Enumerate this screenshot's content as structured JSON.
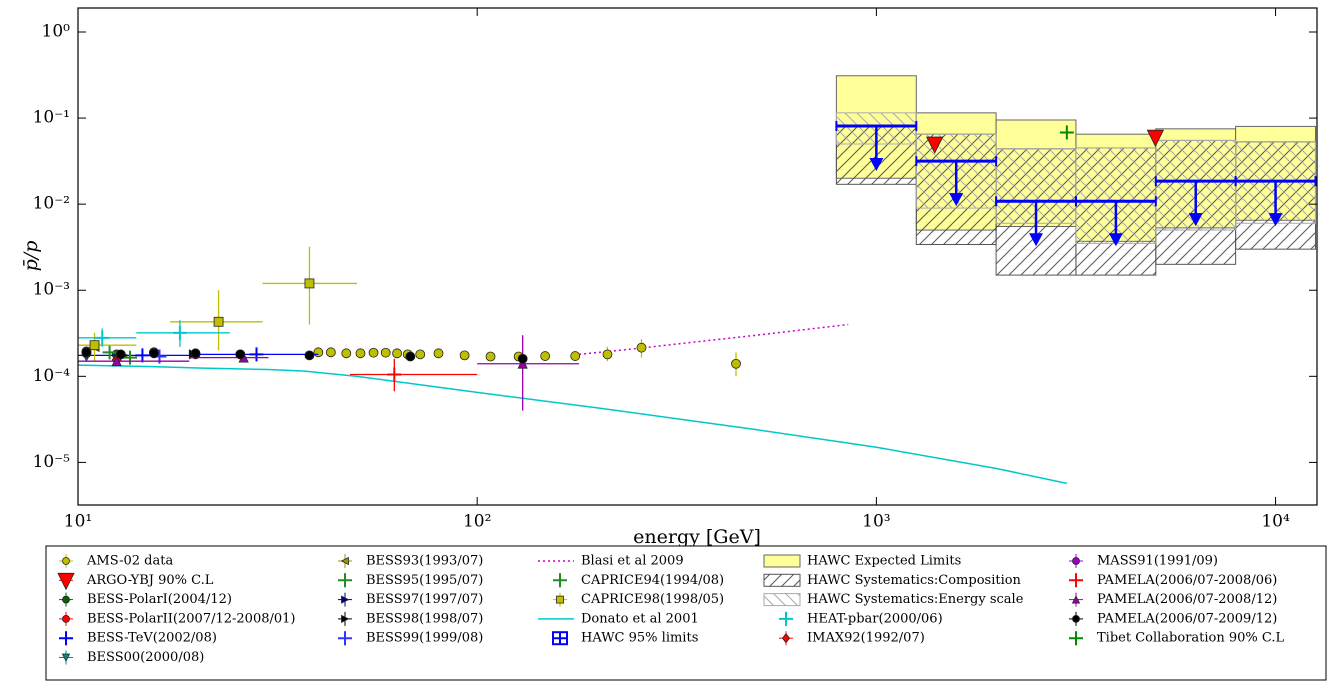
{
  "chart_data": {
    "type": "errorbar",
    "xlabel": "energy [GeV]",
    "ylabel": "p̄/p",
    "log_x": true,
    "log_y": true,
    "xlim": [
      10,
      12700
    ],
    "ylim": [
      3.2e-06,
      1.9
    ],
    "xticks": [
      {
        "value": 10,
        "label": "10¹"
      },
      {
        "value": 100,
        "label": "10²"
      },
      {
        "value": 1000,
        "label": "10³"
      },
      {
        "value": 10000,
        "label": "10⁴"
      }
    ],
    "yticks": [
      {
        "value": 1e-05,
        "label": "10⁻⁵"
      },
      {
        "value": 0.0001,
        "label": "10⁻⁴"
      },
      {
        "value": 0.001,
        "label": "10⁻³"
      },
      {
        "value": 0.01,
        "label": "10⁻²"
      },
      {
        "value": 0.1,
        "label": "10⁻¹"
      },
      {
        "value": 1,
        "label": "10⁰"
      }
    ],
    "bin_edges": [
      794,
      1259,
      1995,
      3162,
      5012,
      7943,
      12589
    ],
    "legend": "bottom",
    "series": [
      {
        "name": "AMS-02 data",
        "kind": "points",
        "marker": "o",
        "color": "#bfbf00",
        "x": [
          40,
          43,
          47,
          51,
          55,
          59,
          63,
          67,
          72,
          80,
          93,
          108,
          127,
          148,
          176,
          212,
          258,
          445
        ],
        "values": [
          0.00019,
          0.00019,
          0.000185,
          0.000185,
          0.000188,
          0.000188,
          0.000185,
          0.00018,
          0.00018,
          0.000185,
          0.000175,
          0.00017,
          0.00017,
          0.000172,
          0.000172,
          0.00018,
          0.000215,
          0.00014
        ],
        "y_low": [
          null,
          null,
          null,
          null,
          null,
          null,
          null,
          null,
          null,
          null,
          null,
          null,
          null,
          null,
          0.000155,
          0.00015,
          0.000165,
          0.0001
        ],
        "y_high": [
          null,
          null,
          null,
          null,
          null,
          null,
          null,
          null,
          null,
          null,
          null,
          null,
          null,
          null,
          0.00019,
          0.00022,
          0.00027,
          0.00019
        ]
      },
      {
        "name": "ARGO-YBJ 90% C.L",
        "kind": "points",
        "marker": "V",
        "color": "#ff0000",
        "x": [
          1400,
          5000
        ],
        "values": [
          0.05,
          0.06
        ]
      },
      {
        "name": "BESS-PolarI(2004/12)",
        "kind": "points",
        "marker": "o",
        "color": "#006400",
        "x": [
          12.5,
          15.5
        ],
        "values": [
          0.00018,
          0.00019
        ]
      },
      {
        "name": "BESS-PolarII(2007/12-2008/01)",
        "kind": "points",
        "marker": "o",
        "color": "#ff0000",
        "x": [
          10.5,
          15.5,
          19.7,
          25.5
        ],
        "values": [
          0.000195,
          0.00019,
          0.00018,
          0.00018
        ]
      },
      {
        "name": "BESS-TeV(2002/08)",
        "kind": "points",
        "marker": "+",
        "color": "#0000ff",
        "x": [
          14.5,
          28
        ],
        "values": [
          0.000175,
          0.00018
        ],
        "x_low": [
          10,
          20
        ],
        "x_high": [
          20,
          40
        ]
      },
      {
        "name": "BESS00(2000/08)",
        "kind": "points",
        "marker": "v",
        "color": "#008b8b",
        "x": [
          10.5
        ],
        "values": [
          0.00017
        ]
      },
      {
        "name": "BESS93(1993/07)",
        "kind": "points",
        "marker": "<",
        "color": "#999900",
        "x": [
          11
        ],
        "values": [
          0.00022
        ]
      },
      {
        "name": "BESS95(1995/07)",
        "kind": "points",
        "marker": "+",
        "color": "#228b22",
        "x": [
          12
        ],
        "values": [
          0.00019
        ]
      },
      {
        "name": "BESS97(1997/07)",
        "kind": "points",
        "marker": ">",
        "color": "#000080",
        "x": [
          13
        ],
        "values": [
          0.000175
        ]
      },
      {
        "name": "BESS98(1998/07)",
        "kind": "points",
        "marker": ">",
        "color": "#000000",
        "x": [
          19.5
        ],
        "values": [
          0.00018
        ]
      },
      {
        "name": "BESS99(1999/08)",
        "kind": "points",
        "marker": "+",
        "color": "#3333ff",
        "x": [
          16
        ],
        "values": [
          0.00017
        ]
      },
      {
        "name": "Blasi et al 2009",
        "kind": "line",
        "dash": "dotted",
        "color": "#cc00cc",
        "x": [
          180,
          250,
          350,
          500,
          700,
          850
        ],
        "values": [
          0.00018,
          0.00021,
          0.00025,
          0.0003,
          0.00036,
          0.0004
        ]
      },
      {
        "name": "CAPRICE94(1994/08)",
        "kind": "points",
        "marker": "+",
        "color": "#228b22",
        "x": [
          13.5
        ],
        "values": [
          0.000165
        ]
      },
      {
        "name": "CAPRICE98(1998/05)",
        "kind": "points",
        "marker": "s",
        "color": "#bfbf00",
        "x": [
          11,
          22.5,
          38
        ],
        "values": [
          0.00023,
          0.00043,
          0.0012
        ],
        "x_low": [
          8.5,
          17,
          29
        ],
        "x_high": [
          14,
          29,
          50
        ],
        "y_low": [
          0.00015,
          0.0002,
          0.0004
        ],
        "y_high": [
          0.00032,
          0.001,
          0.0032
        ]
      },
      {
        "name": "Donato et al 2001",
        "kind": "line",
        "dash": "solid",
        "color": "#00c8c8",
        "x": [
          10,
          15,
          20,
          30,
          37,
          50,
          100,
          200,
          500,
          1000,
          2000,
          3000
        ],
        "values": [
          0.000135,
          0.00013,
          0.000125,
          0.00012,
          0.000115,
          0.0001,
          6.5e-05,
          4.3e-05,
          2.4e-05,
          1.5e-05,
          8.5e-06,
          5.7e-06
        ]
      },
      {
        "name": "HAWC 95% limits",
        "kind": "limit",
        "color": "#0000ff",
        "values": [
          0.081,
          0.0316,
          0.0108,
          0.0108,
          0.0185,
          0.0185
        ]
      },
      {
        "name": "HAWC Expected Limits",
        "kind": "band",
        "color": "#ffff99",
        "low": [
          0.02,
          0.005,
          0.0055,
          0.0037,
          0.0053,
          0.0065
        ],
        "high": [
          0.31,
          0.115,
          0.095,
          0.065,
          0.075,
          0.08
        ]
      },
      {
        "name": "HAWC Systematics:Composition",
        "kind": "band",
        "hatch": "forward",
        "color": "#555555",
        "low": [
          0.017,
          0.0034,
          0.0015,
          0.0015,
          0.002,
          0.003
        ],
        "high": [
          0.08,
          0.065,
          0.044,
          0.045,
          0.055,
          0.053
        ]
      },
      {
        "name": "HAWC Systematics:Energy scale",
        "kind": "band",
        "hatch": "back",
        "color": "#aaaaaa",
        "low": [
          0.05,
          0.009,
          0.006,
          0.0035,
          0.005,
          0.006
        ],
        "high": [
          0.115,
          0.065,
          0.044,
          0.045,
          0.055,
          0.053
        ]
      },
      {
        "name": "HEAT-pbar(2000/06)",
        "kind": "points",
        "marker": "+",
        "color": "#00c8c8",
        "x": [
          11.5,
          18
        ],
        "values": [
          0.00028,
          0.00032
        ],
        "x_low": [
          10,
          14
        ],
        "x_high": [
          14,
          24
        ],
        "y_low": [
          0.00022,
          0.00022
        ],
        "y_high": [
          0.00036,
          0.00045
        ]
      },
      {
        "name": "IMAX92(1992/07)",
        "kind": "points",
        "marker": "d",
        "color": "#ff0000",
        "x": [
          12.5
        ],
        "values": [
          0.000155
        ]
      },
      {
        "name": "MASS91(1991/09)",
        "kind": "points",
        "marker": "o",
        "color": "#9900cc",
        "x": [
          10.5
        ],
        "values": [
          0.000185
        ]
      },
      {
        "name": "PAMELA(2006/07-2008/06)",
        "kind": "points",
        "marker": "+",
        "color": "#ff0000",
        "x": [
          62
        ],
        "values": [
          0.000105
        ],
        "x_low": [
          48
        ],
        "x_high": [
          100
        ],
        "y_low": [
          6.7e-05
        ],
        "y_high": [
          0.00016
        ]
      },
      {
        "name": "PAMELA(2006/07-2008/12)",
        "kind": "points",
        "marker": "^",
        "color": "#9900aa",
        "x": [
          12.5,
          26,
          130
        ],
        "values": [
          0.00015,
          0.000165,
          0.00014
        ],
        "x_low": [
          10,
          19,
          100
        ],
        "x_high": [
          19,
          30,
          180
        ],
        "y_low": [
          0.000135,
          0.00015,
          4e-05
        ],
        "y_high": [
          0.00017,
          0.000185,
          0.0003
        ]
      },
      {
        "name": "PAMELA(2006/07-2009/12)",
        "kind": "points",
        "marker": "o",
        "color": "#000000",
        "x": [
          10.5,
          12.8,
          15.5,
          19.7,
          25.5,
          38,
          68,
          130
        ],
        "values": [
          0.00019,
          0.00018,
          0.000185,
          0.000185,
          0.00018,
          0.000175,
          0.00017,
          0.00016
        ]
      },
      {
        "name": "Tibet Collaboration 90% C.L",
        "kind": "points",
        "marker": "+",
        "color": "#008800",
        "x": [
          3000
        ],
        "values": [
          0.068
        ]
      }
    ]
  }
}
